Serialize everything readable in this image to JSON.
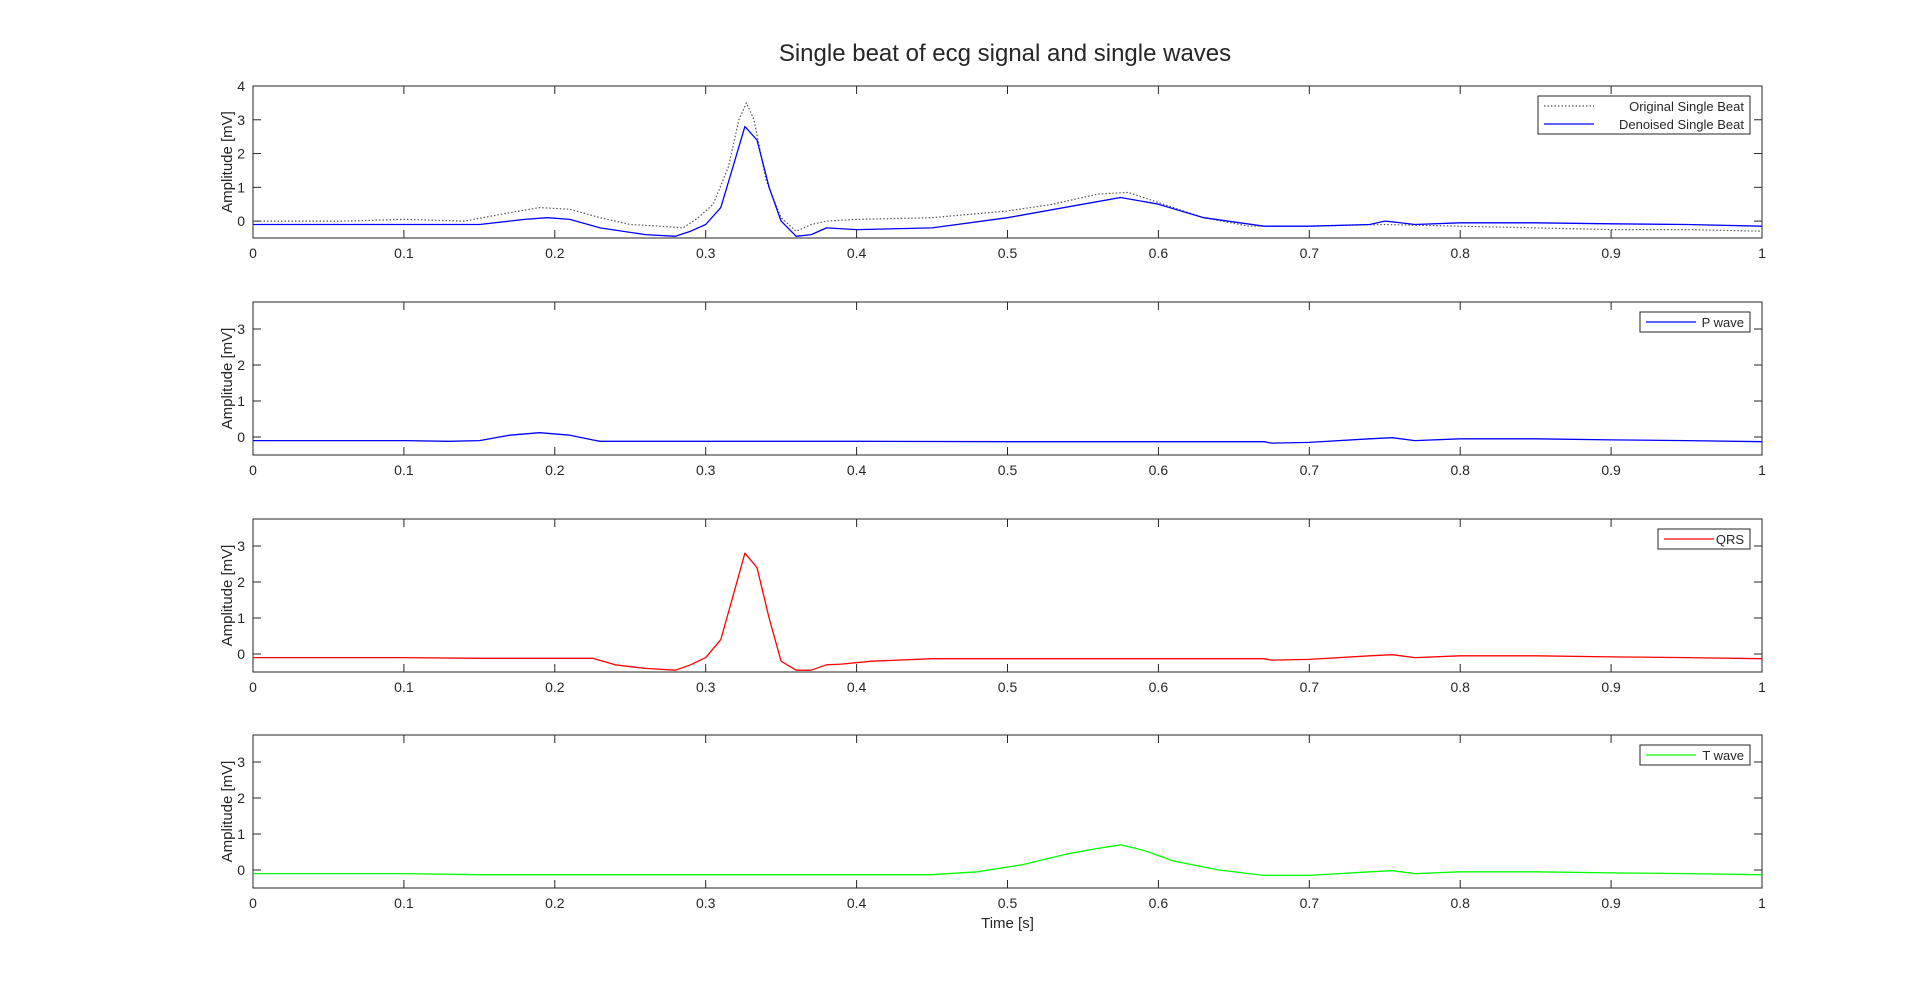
{
  "figure": {
    "title": "Single beat of ecg signal and single waves"
  },
  "colors": {
    "original": "#555555",
    "denoised": "#0000ff",
    "p_wave": "#0000ff",
    "qrs": "#ff0000",
    "t_wave": "#00ff00",
    "axis": "#262626",
    "background": "#ffffff"
  },
  "chart_data": [
    {
      "type": "line",
      "xlabel": "",
      "ylabel": "Amplitude [mV]",
      "xlim": [
        0,
        1
      ],
      "ylim": [
        -0.5,
        4
      ],
      "xticks": [
        0,
        0.1,
        0.2,
        0.3,
        0.4,
        0.5,
        0.6,
        0.7,
        0.8,
        0.9,
        1
      ],
      "xtick_labels": [
        "0",
        "0.1",
        "0.2",
        "0.3",
        "0.4",
        "0.5",
        "0.6",
        "0.7",
        "0.8",
        "0.9",
        "1"
      ],
      "yticks": [
        0,
        1,
        2,
        3,
        4
      ],
      "ytick_labels": [
        "0",
        "1",
        "2",
        "3",
        "4"
      ],
      "grid": false,
      "legend_position": "top-right",
      "series": [
        {
          "name": "Original Single Beat",
          "style": "dotted",
          "color_key": "original",
          "x": [
            0,
            0.03,
            0.06,
            0.1,
            0.14,
            0.17,
            0.19,
            0.21,
            0.23,
            0.25,
            0.27,
            0.285,
            0.295,
            0.305,
            0.315,
            0.322,
            0.327,
            0.332,
            0.34,
            0.35,
            0.36,
            0.37,
            0.38,
            0.4,
            0.45,
            0.5,
            0.53,
            0.56,
            0.58,
            0.6,
            0.63,
            0.66,
            0.7,
            0.75,
            0.8,
            0.85,
            0.9,
            0.95,
            1
          ],
          "y": [
            0,
            0,
            0,
            0.05,
            0,
            0.25,
            0.4,
            0.35,
            0.1,
            -0.1,
            -0.15,
            -0.2,
            0.1,
            0.5,
            1.6,
            3.0,
            3.5,
            3.0,
            1.2,
            0.1,
            -0.3,
            -0.1,
            0,
            0.05,
            0.1,
            0.3,
            0.5,
            0.8,
            0.85,
            0.55,
            0.1,
            -0.15,
            -0.15,
            -0.1,
            -0.15,
            -0.2,
            -0.25,
            -0.25,
            -0.3
          ]
        },
        {
          "name": "Denoised Single Beat",
          "style": "solid",
          "color_key": "denoised",
          "x": [
            0,
            0.1,
            0.15,
            0.18,
            0.195,
            0.21,
            0.23,
            0.26,
            0.28,
            0.29,
            0.3,
            0.31,
            0.318,
            0.326,
            0.334,
            0.342,
            0.35,
            0.36,
            0.37,
            0.38,
            0.4,
            0.45,
            0.5,
            0.55,
            0.575,
            0.6,
            0.63,
            0.67,
            0.7,
            0.74,
            0.75,
            0.755,
            0.77,
            0.8,
            0.85,
            0.9,
            0.95,
            1
          ],
          "y": [
            -0.1,
            -0.1,
            -0.1,
            0.05,
            0.1,
            0.05,
            -0.2,
            -0.4,
            -0.45,
            -0.3,
            -0.1,
            0.4,
            1.6,
            2.8,
            2.4,
            1.0,
            0.0,
            -0.45,
            -0.4,
            -0.2,
            -0.25,
            -0.2,
            0.1,
            0.5,
            0.7,
            0.5,
            0.1,
            -0.15,
            -0.15,
            -0.1,
            0.0,
            -0.02,
            -0.1,
            -0.05,
            -0.05,
            -0.08,
            -0.1,
            -0.15
          ]
        }
      ]
    },
    {
      "type": "line",
      "xlabel": "",
      "ylabel": "Amplitude [mV]",
      "xlim": [
        0,
        1
      ],
      "ylim": [
        -0.5,
        3.75
      ],
      "xticks": [
        0,
        0.1,
        0.2,
        0.3,
        0.4,
        0.5,
        0.6,
        0.7,
        0.8,
        0.9,
        1
      ],
      "xtick_labels": [
        "0",
        "0.1",
        "0.2",
        "0.3",
        "0.4",
        "0.5",
        "0.6",
        "0.7",
        "0.8",
        "0.9",
        "1"
      ],
      "yticks": [
        0,
        1,
        2,
        3
      ],
      "ytick_labels": [
        "0",
        "1",
        "2",
        "3"
      ],
      "grid": false,
      "legend_position": "top-right",
      "series": [
        {
          "name": "P wave",
          "style": "solid",
          "color_key": "p_wave",
          "x": [
            0,
            0.1,
            0.13,
            0.15,
            0.17,
            0.19,
            0.21,
            0.225,
            0.23,
            0.3,
            0.4,
            0.5,
            0.6,
            0.67,
            0.675,
            0.7,
            0.74,
            0.755,
            0.77,
            0.8,
            0.85,
            0.9,
            0.95,
            1
          ],
          "y": [
            -0.1,
            -0.1,
            -0.12,
            -0.1,
            0.05,
            0.12,
            0.05,
            -0.08,
            -0.12,
            -0.12,
            -0.12,
            -0.13,
            -0.13,
            -0.13,
            -0.17,
            -0.15,
            -0.05,
            -0.02,
            -0.1,
            -0.05,
            -0.05,
            -0.08,
            -0.1,
            -0.13
          ]
        }
      ]
    },
    {
      "type": "line",
      "xlabel": "",
      "ylabel": "Amplitude [mV]",
      "xlim": [
        0,
        1
      ],
      "ylim": [
        -0.5,
        3.75
      ],
      "xticks": [
        0,
        0.1,
        0.2,
        0.3,
        0.4,
        0.5,
        0.6,
        0.7,
        0.8,
        0.9,
        1
      ],
      "xtick_labels": [
        "0",
        "0.1",
        "0.2",
        "0.3",
        "0.4",
        "0.5",
        "0.6",
        "0.7",
        "0.8",
        "0.9",
        "1"
      ],
      "yticks": [
        0,
        1,
        2,
        3
      ],
      "ytick_labels": [
        "0",
        "1",
        "2",
        "3"
      ],
      "grid": false,
      "legend_position": "top-right",
      "series": [
        {
          "name": "QRS",
          "style": "solid",
          "color_key": "qrs",
          "x": [
            0,
            0.1,
            0.15,
            0.2,
            0.225,
            0.24,
            0.26,
            0.28,
            0.29,
            0.3,
            0.31,
            0.318,
            0.326,
            0.334,
            0.342,
            0.35,
            0.36,
            0.37,
            0.38,
            0.39,
            0.41,
            0.45,
            0.5,
            0.6,
            0.67,
            0.675,
            0.7,
            0.74,
            0.755,
            0.77,
            0.8,
            0.85,
            0.9,
            0.95,
            1
          ],
          "y": [
            -0.1,
            -0.1,
            -0.12,
            -0.12,
            -0.12,
            -0.3,
            -0.4,
            -0.45,
            -0.3,
            -0.1,
            0.4,
            1.6,
            2.8,
            2.4,
            1.0,
            -0.2,
            -0.45,
            -0.45,
            -0.3,
            -0.28,
            -0.2,
            -0.13,
            -0.13,
            -0.13,
            -0.13,
            -0.17,
            -0.15,
            -0.05,
            -0.02,
            -0.1,
            -0.05,
            -0.05,
            -0.08,
            -0.1,
            -0.13
          ]
        }
      ]
    },
    {
      "type": "line",
      "xlabel": "Time [s]",
      "ylabel": "Amplitude [mV]",
      "xlim": [
        0,
        1
      ],
      "ylim": [
        -0.5,
        3.75
      ],
      "xticks": [
        0,
        0.1,
        0.2,
        0.3,
        0.4,
        0.5,
        0.6,
        0.7,
        0.8,
        0.9,
        1
      ],
      "xtick_labels": [
        "0",
        "0.1",
        "0.2",
        "0.3",
        "0.4",
        "0.5",
        "0.6",
        "0.7",
        "0.8",
        "0.9",
        "1"
      ],
      "yticks": [
        0,
        1,
        2,
        3
      ],
      "ytick_labels": [
        "0",
        "1",
        "2",
        "3"
      ],
      "grid": false,
      "legend_position": "top-right",
      "series": [
        {
          "name": "T wave",
          "style": "solid",
          "color_key": "t_wave",
          "x": [
            0,
            0.1,
            0.15,
            0.2,
            0.3,
            0.4,
            0.45,
            0.48,
            0.51,
            0.54,
            0.56,
            0.575,
            0.59,
            0.61,
            0.64,
            0.67,
            0.7,
            0.74,
            0.755,
            0.77,
            0.8,
            0.85,
            0.9,
            0.95,
            1
          ],
          "y": [
            -0.1,
            -0.1,
            -0.13,
            -0.13,
            -0.13,
            -0.13,
            -0.13,
            -0.05,
            0.15,
            0.45,
            0.6,
            0.7,
            0.55,
            0.25,
            0.0,
            -0.15,
            -0.15,
            -0.05,
            -0.02,
            -0.1,
            -0.05,
            -0.05,
            -0.08,
            -0.1,
            -0.13
          ]
        }
      ]
    }
  ]
}
